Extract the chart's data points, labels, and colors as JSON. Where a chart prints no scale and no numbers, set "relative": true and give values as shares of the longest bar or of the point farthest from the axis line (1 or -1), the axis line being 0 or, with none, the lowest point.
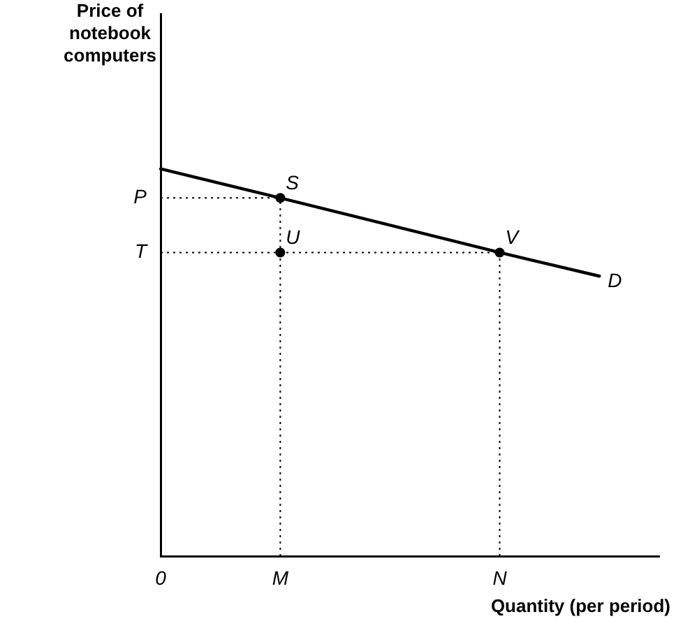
{
  "chart_data": {
    "type": "line",
    "relative": true,
    "xlabel": "Quantity (per period)",
    "categories": [
      "0",
      null,
      null,
      null,
      null,
      null,
      "M",
      null,
      null,
      null,
      null,
      null,
      null,
      null,
      null,
      null,
      null,
      "N",
      null,
      null,
      null,
      null,
      null,
      null,
      null,
      null
    ],
    "legend": false,
    "series": [
      {
        "name": "D",
        "color": "#000000",
        "marker": "none",
        "line_style": "solid",
        "values": [
          1,
          null,
          null,
          null,
          null,
          null,
          0.925,
          null,
          null,
          null,
          null,
          null,
          null,
          null,
          null,
          null,
          null,
          0.784,
          null,
          null,
          null,
          null,
          0.723,
          null,
          null,
          null
        ]
      },
      {
        "type": "scatter",
        "color": "#000000",
        "marker": "circle",
        "x": [
          "M",
          "N",
          "M"
        ],
        "values": [
          0.925,
          0.784,
          0.784
        ]
      }
    ],
    "ref_lines": [
      {
        "axis": "y",
        "value": 0.925,
        "label": "P",
        "color": "#000000",
        "line_style": "dotted"
      },
      {
        "axis": "y",
        "value": 0.784,
        "label": "T",
        "color": "#000000",
        "line_style": "dotted"
      },
      {
        "axis": "x",
        "value": "M",
        "color": "#000000",
        "line_style": "dotted"
      },
      {
        "axis": "x",
        "value": "N",
        "color": "#000000",
        "line_style": "dotted"
      }
    ],
    "annotations": [
      "Price of\nnotebook\ncomputers",
      {
        "text": "S",
        "x": "M",
        "y": 0.925
      },
      {
        "text": "V",
        "x": "N",
        "y": 0.784
      },
      {
        "text": "U",
        "x": "M",
        "y": 0.784
      }
    ]
  }
}
